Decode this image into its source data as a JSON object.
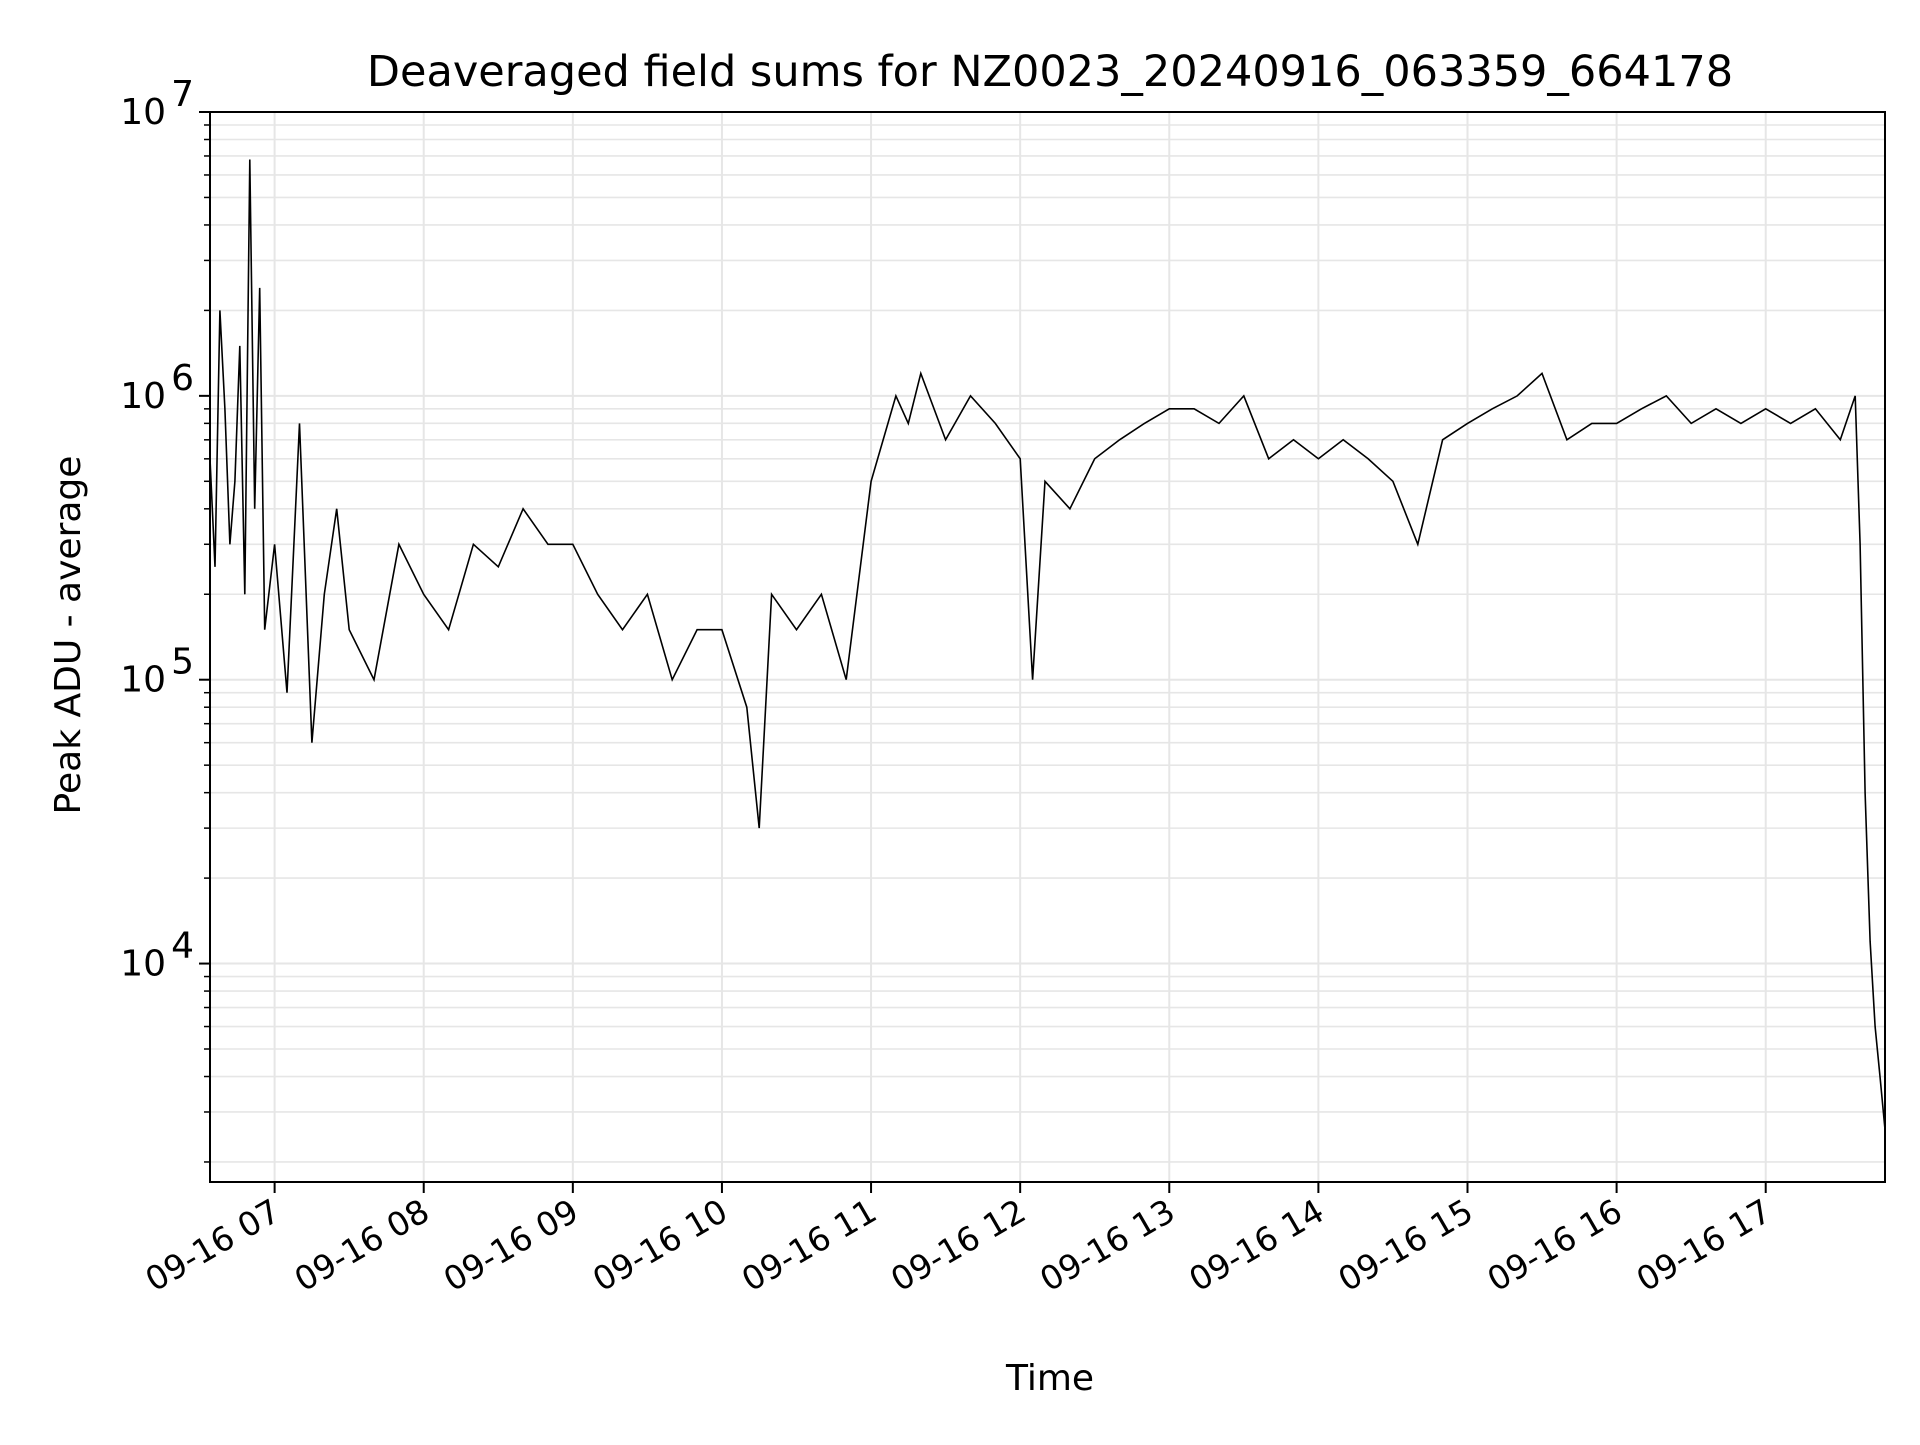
{
  "chart_data": {
    "type": "line",
    "title": "Deaveraged field sums for NZ0023_20240916_063359_664178",
    "xlabel": "Time",
    "ylabel": "Peak ADU - average",
    "y_scale": "log",
    "ylim": [
      1700,
      10000000
    ],
    "xlim": [
      "2024-09-16 06:34:00",
      "2024-09-16 17:48:00"
    ],
    "grid": true,
    "line_color": "#000000",
    "grid_color": "#e6e6e6",
    "y_ticks": [
      {
        "value": 10000,
        "base": "10",
        "exp": "4"
      },
      {
        "value": 100000,
        "base": "10",
        "exp": "5"
      },
      {
        "value": 1000000,
        "base": "10",
        "exp": "6"
      },
      {
        "value": 10000000,
        "base": "10",
        "exp": "7"
      }
    ],
    "x_ticks": [
      {
        "time": "2024-09-16 07:00:00",
        "label": "09-16 07"
      },
      {
        "time": "2024-09-16 08:00:00",
        "label": "09-16 08"
      },
      {
        "time": "2024-09-16 09:00:00",
        "label": "09-16 09"
      },
      {
        "time": "2024-09-16 10:00:00",
        "label": "09-16 10"
      },
      {
        "time": "2024-09-16 11:00:00",
        "label": "09-16 11"
      },
      {
        "time": "2024-09-16 12:00:00",
        "label": "09-16 12"
      },
      {
        "time": "2024-09-16 13:00:00",
        "label": "09-16 13"
      },
      {
        "time": "2024-09-16 14:00:00",
        "label": "09-16 14"
      },
      {
        "time": "2024-09-16 15:00:00",
        "label": "09-16 15"
      },
      {
        "time": "2024-09-16 16:00:00",
        "label": "09-16 16"
      },
      {
        "time": "2024-09-16 17:00:00",
        "label": "09-16 17"
      }
    ],
    "series": [
      {
        "x": [
          "2024-09-16 06:34:00",
          "2024-09-16 06:36:00",
          "2024-09-16 06:38:00",
          "2024-09-16 06:40:00",
          "2024-09-16 06:42:00",
          "2024-09-16 06:44:00",
          "2024-09-16 06:46:00",
          "2024-09-16 06:48:00",
          "2024-09-16 06:50:00",
          "2024-09-16 06:52:00",
          "2024-09-16 06:54:00",
          "2024-09-16 06:56:00",
          "2024-09-16 07:00:00",
          "2024-09-16 07:05:00",
          "2024-09-16 07:10:00",
          "2024-09-16 07:15:00",
          "2024-09-16 07:20:00",
          "2024-09-16 07:25:00",
          "2024-09-16 07:30:00",
          "2024-09-16 07:40:00",
          "2024-09-16 07:50:00",
          "2024-09-16 08:00:00",
          "2024-09-16 08:10:00",
          "2024-09-16 08:20:00",
          "2024-09-16 08:30:00",
          "2024-09-16 08:40:00",
          "2024-09-16 08:50:00",
          "2024-09-16 09:00:00",
          "2024-09-16 09:10:00",
          "2024-09-16 09:20:00",
          "2024-09-16 09:30:00",
          "2024-09-16 09:40:00",
          "2024-09-16 09:50:00",
          "2024-09-16 10:00:00",
          "2024-09-16 10:10:00",
          "2024-09-16 10:15:00",
          "2024-09-16 10:20:00",
          "2024-09-16 10:30:00",
          "2024-09-16 10:40:00",
          "2024-09-16 10:50:00",
          "2024-09-16 11:00:00",
          "2024-09-16 11:10:00",
          "2024-09-16 11:15:00",
          "2024-09-16 11:20:00",
          "2024-09-16 11:30:00",
          "2024-09-16 11:40:00",
          "2024-09-16 11:50:00",
          "2024-09-16 12:00:00",
          "2024-09-16 12:05:00",
          "2024-09-16 12:10:00",
          "2024-09-16 12:20:00",
          "2024-09-16 12:30:00",
          "2024-09-16 12:40:00",
          "2024-09-16 12:50:00",
          "2024-09-16 13:00:00",
          "2024-09-16 13:10:00",
          "2024-09-16 13:20:00",
          "2024-09-16 13:30:00",
          "2024-09-16 13:40:00",
          "2024-09-16 13:50:00",
          "2024-09-16 14:00:00",
          "2024-09-16 14:10:00",
          "2024-09-16 14:20:00",
          "2024-09-16 14:30:00",
          "2024-09-16 14:40:00",
          "2024-09-16 14:50:00",
          "2024-09-16 15:00:00",
          "2024-09-16 15:10:00",
          "2024-09-16 15:20:00",
          "2024-09-16 15:30:00",
          "2024-09-16 15:40:00",
          "2024-09-16 15:50:00",
          "2024-09-16 16:00:00",
          "2024-09-16 16:10:00",
          "2024-09-16 16:20:00",
          "2024-09-16 16:30:00",
          "2024-09-16 16:40:00",
          "2024-09-16 16:50:00",
          "2024-09-16 17:00:00",
          "2024-09-16 17:10:00",
          "2024-09-16 17:20:00",
          "2024-09-16 17:30:00",
          "2024-09-16 17:36:00",
          "2024-09-16 17:38:00",
          "2024-09-16 17:40:00",
          "2024-09-16 17:42:00",
          "2024-09-16 17:44:00",
          "2024-09-16 17:46:00",
          "2024-09-16 17:48:00"
        ],
        "y": [
          600000,
          250000,
          2000000,
          900000,
          300000,
          500000,
          1500000,
          200000,
          6800000,
          400000,
          2400000,
          150000,
          300000,
          90000,
          800000,
          60000,
          200000,
          400000,
          150000,
          100000,
          300000,
          200000,
          150000,
          300000,
          250000,
          400000,
          300000,
          300000,
          200000,
          150000,
          200000,
          100000,
          150000,
          150000,
          80000,
          30000,
          200000,
          150000,
          200000,
          100000,
          500000,
          1000000,
          800000,
          1200000,
          700000,
          1000000,
          800000,
          600000,
          100000,
          500000,
          400000,
          600000,
          700000,
          800000,
          900000,
          900000,
          800000,
          1000000,
          600000,
          700000,
          600000,
          700000,
          600000,
          500000,
          300000,
          700000,
          800000,
          900000,
          1000000,
          1200000,
          700000,
          800000,
          800000,
          900000,
          1000000,
          800000,
          900000,
          800000,
          900000,
          800000,
          900000,
          700000,
          1000000,
          300000,
          40000,
          12000,
          6000,
          4000,
          2600
        ]
      }
    ]
  }
}
